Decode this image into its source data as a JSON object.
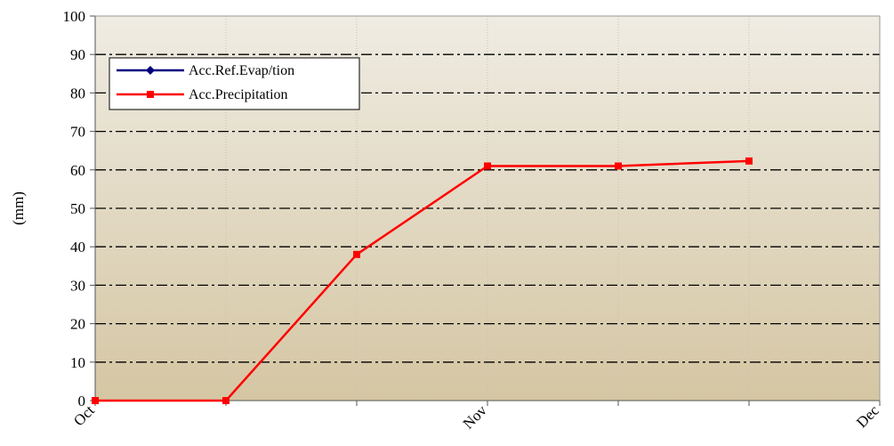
{
  "chart_data": {
    "type": "line",
    "ylabel": "(mm)",
    "ylim": [
      0,
      100
    ],
    "yticks": [
      0,
      10,
      20,
      30,
      40,
      50,
      60,
      70,
      80,
      90,
      100
    ],
    "x_major_labels": [
      "Oct",
      "Nov",
      "Dec"
    ],
    "x_divisions": 6,
    "grid": true,
    "legend_position": "top-left",
    "series": [
      {
        "name": "Acc.Ref.Evap/tion",
        "color": "#000080",
        "marker": "diamond",
        "x": [],
        "values": []
      },
      {
        "name": "Acc.Precipitation",
        "color": "#ff0000",
        "marker": "square",
        "x": [
          0,
          1,
          2,
          3,
          4,
          5
        ],
        "values": [
          0,
          0,
          38,
          61,
          61,
          62.3
        ]
      }
    ]
  }
}
